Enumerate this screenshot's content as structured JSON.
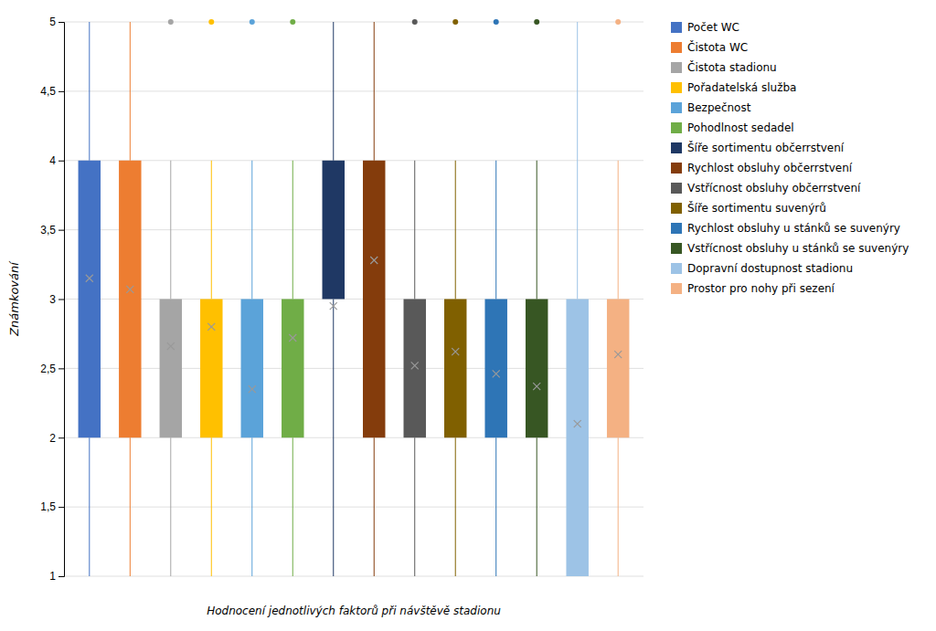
{
  "chart_data": {
    "type": "box",
    "xlabel": "Hodnocení jednotlivých faktorů při návštěvě stadionu",
    "ylabel": "Známkování",
    "categories": [
      "Počet WC",
      "Čistota WC",
      "Čistota stadionu",
      "Pořadatelská služba",
      "Bezpečnost",
      "Pohodlnost sedadel",
      "Šíře sortimentu občerrstvení",
      "Rychlost obsluhy občerrstvení",
      "Vstřícnost obsluhy občerrstvení",
      "Šíře sortimentu suvenýrů",
      "Rychlost obsluhy u stánků se suvenýry",
      "Vstřícnost obsluhy u stánků se suvenýry",
      "Dopravní dostupnost stadionu",
      "Prostor pro nohy při sezení"
    ],
    "colors": [
      "#4472C4",
      "#ED7D31",
      "#A5A5A5",
      "#FFC000",
      "#5BA3D9",
      "#70AD47",
      "#1F3864",
      "#843C0C",
      "#595959",
      "#806000",
      "#2E75B6",
      "#375623",
      "#9DC3E6",
      "#F4B183"
    ],
    "q1": [
      2.0,
      2.0,
      2.0,
      2.0,
      2.0,
      2.0,
      3.0,
      2.0,
      2.0,
      2.0,
      2.0,
      2.0,
      1.0,
      2.0
    ],
    "q3": [
      4.0,
      4.0,
      3.0,
      3.0,
      3.0,
      3.0,
      4.0,
      4.0,
      3.0,
      3.0,
      3.0,
      3.0,
      3.0,
      3.0
    ],
    "whisker_low": [
      1.0,
      1.0,
      1.0,
      1.0,
      1.0,
      1.0,
      1.0,
      1.0,
      1.0,
      1.0,
      1.0,
      1.0,
      1.0,
      1.0
    ],
    "whisker_high": [
      5.0,
      5.0,
      4.0,
      4.0,
      4.0,
      4.0,
      5.0,
      5.0,
      4.0,
      4.0,
      4.0,
      4.0,
      5.0,
      4.0
    ],
    "mean": [
      3.15,
      3.07,
      2.66,
      2.8,
      2.35,
      2.72,
      2.95,
      3.28,
      2.52,
      2.62,
      2.46,
      2.37,
      2.1,
      2.6
    ],
    "flier_high": [
      null,
      null,
      5.0,
      5.0,
      5.0,
      5.0,
      null,
      null,
      5.0,
      5.0,
      5.0,
      5.0,
      null,
      5.0
    ],
    "ylim": [
      1.0,
      5.0
    ],
    "yticks": [
      1,
      {
        "value": 1.5,
        "label": "1,5"
      },
      2,
      {
        "value": 2.5,
        "label": "2,5"
      },
      3,
      {
        "value": 3.5,
        "label": "3,5"
      },
      4,
      {
        "value": 4.5,
        "label": "4,5"
      },
      5
    ],
    "grid": true,
    "legend": "right",
    "tick_labels": "y"
  }
}
